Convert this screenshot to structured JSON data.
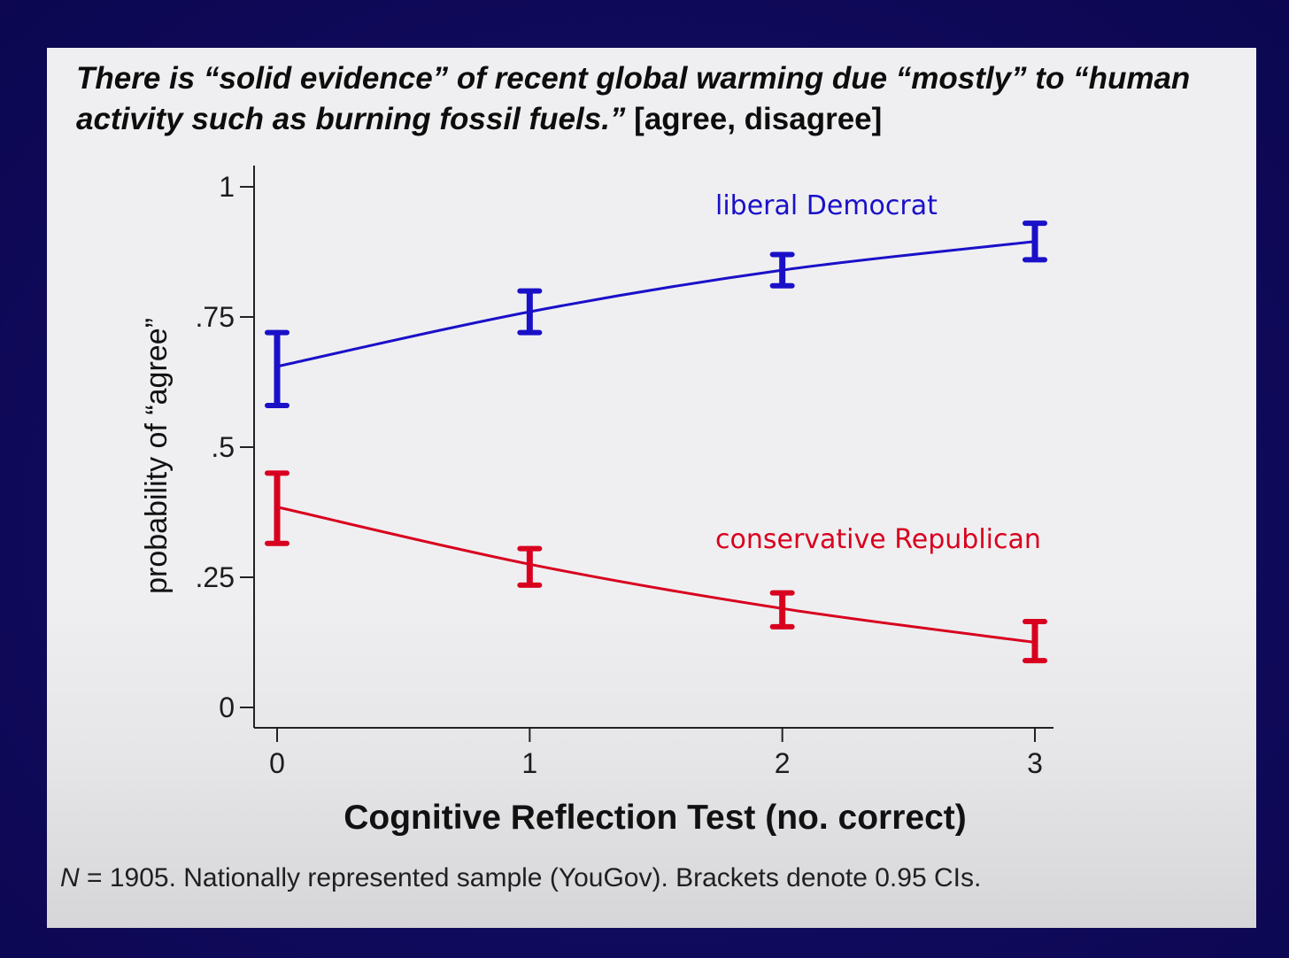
{
  "slide": {
    "heading_italic": "There is “solid evidence” of recent global warming due “mostly” to “human activity such as burning fossil fuels.”",
    "heading_options": "[agree, disagree]",
    "footnote_n": "N",
    "footnote_text": " = 1905. Nationally represented sample (YouGov).  Brackets denote 0.95 CIs."
  },
  "colors": {
    "background": "#100a5c",
    "panel": "#efeff1",
    "liberal": "#1a10c8",
    "conservative": "#d8001e"
  },
  "chart_data": {
    "type": "line",
    "title": "",
    "xlabel": "Cognitive Reflection Test (no. correct)",
    "ylabel": "probability of “agree”",
    "x": [
      0,
      1,
      2,
      3
    ],
    "x_tick_labels": [
      "0",
      "1",
      "2",
      "3"
    ],
    "ylim": [
      0,
      1
    ],
    "y_ticks": [
      0,
      0.25,
      0.5,
      0.75,
      1
    ],
    "y_tick_labels": [
      "0",
      ".25",
      ".5",
      ".75",
      "1"
    ],
    "grid": false,
    "series": [
      {
        "name": "liberal Democrat",
        "color": "#1a10c8",
        "values": [
          0.655,
          0.76,
          0.84,
          0.895
        ],
        "ci_low": [
          0.58,
          0.72,
          0.81,
          0.86
        ],
        "ci_high": [
          0.72,
          0.8,
          0.87,
          0.93
        ]
      },
      {
        "name": "conservative Republican",
        "color": "#d8001e",
        "values": [
          0.385,
          0.275,
          0.19,
          0.125
        ],
        "ci_low": [
          0.315,
          0.235,
          0.155,
          0.09
        ],
        "ci_high": [
          0.45,
          0.305,
          0.22,
          0.165
        ]
      }
    ]
  }
}
